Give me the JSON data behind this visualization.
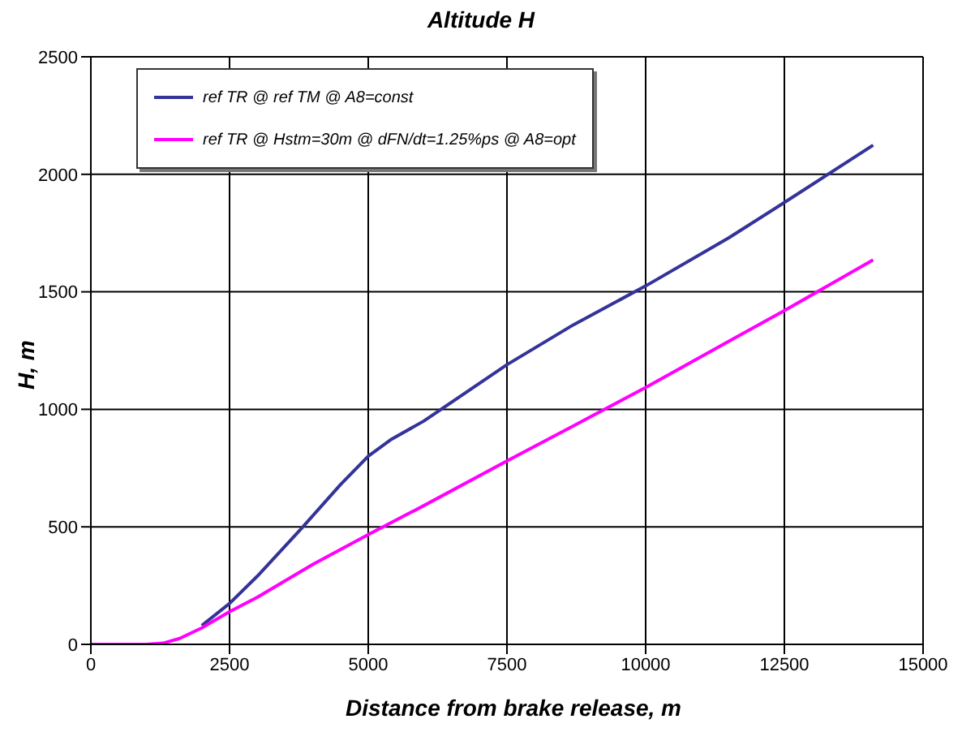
{
  "chart_data": {
    "type": "line",
    "title": "Altitude H",
    "xlabel": "Distance from brake release, m",
    "ylabel": "H, m",
    "xlim": [
      0,
      15000
    ],
    "xticks": [
      0,
      2500,
      5000,
      7500,
      10000,
      12500,
      15000
    ],
    "ylim": [
      0,
      2500
    ],
    "yticks": [
      0,
      500,
      1000,
      1500,
      2000,
      2500
    ],
    "grid": true,
    "legend": "top left",
    "marker": "none",
    "series": [
      {
        "name": "ref TR @ ref TM @ A8=const",
        "color": "#333399",
        "x": [
          2000,
          2500,
          3000,
          3800,
          4500,
          5000,
          5400,
          6000,
          7500,
          8700,
          10000,
          11500,
          12500,
          14100
        ],
        "values": [
          80,
          174,
          290,
          494,
          680,
          801,
          870,
          950,
          1190,
          1360,
          1525,
          1730,
          1880,
          2124
        ]
      },
      {
        "name": "ref TR @ Hstm=30m @ dFN/dt=1.25%ps @ A8=opt",
        "color": "#ff00ff",
        "x": [
          0,
          1000,
          1300,
          1600,
          2000,
          2500,
          3000,
          4000,
          5000,
          6000,
          7500,
          8700,
          10000,
          11500,
          12500,
          14100
        ],
        "values": [
          0,
          0,
          5,
          25,
          70,
          139,
          200,
          340,
          467,
          590,
          780,
          930,
          1093,
          1290,
          1420,
          1636
        ]
      }
    ]
  }
}
